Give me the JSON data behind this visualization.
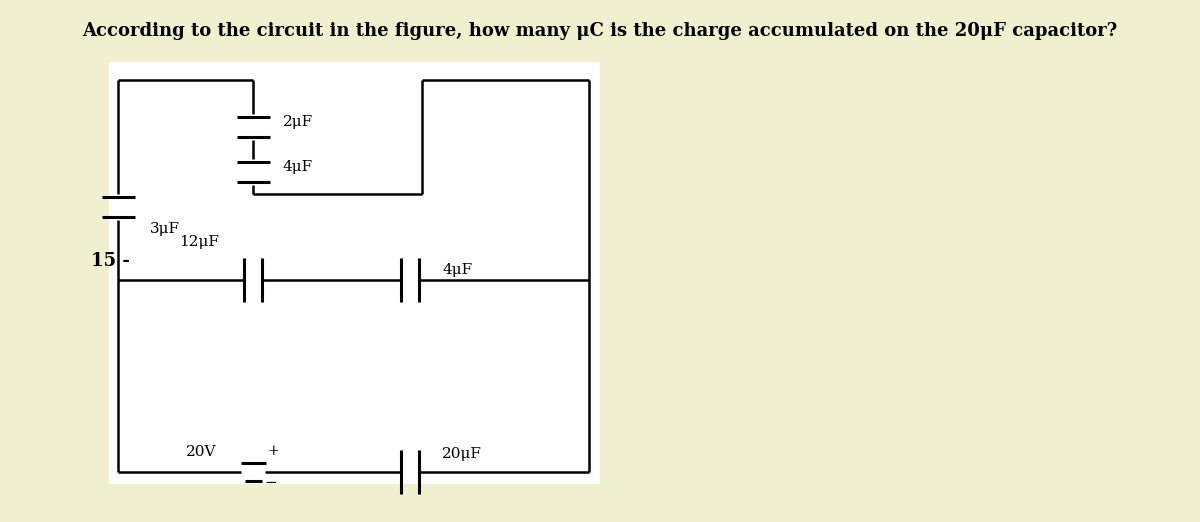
{
  "title": "According to the circuit in the figure, how many μC is the charge accumulated on the 20μF capacitor?",
  "title_fontsize": 13,
  "title_fontweight": "bold",
  "background_color": "#f0f0d0",
  "panel_color": "#ffffff",
  "label_15": "15 -",
  "line_color": "#000000",
  "lw": 1.8,
  "cap_lw": 2.2,
  "labels": {
    "3uF": "3μF",
    "2uF": "2μF",
    "4uF_inner": "4μF",
    "12uF": "12μF",
    "4uF_mid": "4μF",
    "20V": "20V",
    "20uF": "20μF"
  }
}
